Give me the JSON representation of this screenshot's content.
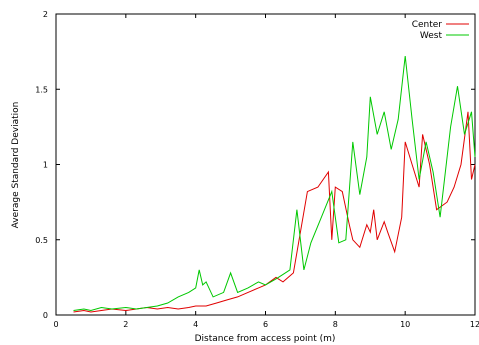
{
  "chart_data": {
    "type": "line",
    "xlabel": "Distance from access point (m)",
    "ylabel": "Average Standard Deviation",
    "xlim": [
      0,
      12
    ],
    "ylim": [
      0,
      2
    ],
    "xticks": [
      0,
      2,
      4,
      6,
      8,
      10,
      12
    ],
    "yticks": [
      0,
      0.5,
      1,
      1.5,
      2
    ],
    "legend_position": "top-right",
    "grid": false,
    "series": [
      {
        "name": "Center",
        "color": "#e00000",
        "x": [
          0.5,
          0.8,
          1.0,
          1.3,
          1.6,
          2.0,
          2.3,
          2.6,
          2.9,
          3.2,
          3.5,
          3.8,
          4.0,
          4.3,
          4.6,
          4.9,
          5.2,
          5.5,
          5.8,
          6.0,
          6.3,
          6.5,
          6.8,
          7.0,
          7.2,
          7.5,
          7.8,
          7.9,
          8.0,
          8.2,
          8.4,
          8.5,
          8.7,
          8.9,
          9.0,
          9.1,
          9.2,
          9.4,
          9.5,
          9.7,
          9.9,
          10.0,
          10.2,
          10.4,
          10.5,
          10.7,
          10.9,
          11.2,
          11.4,
          11.6,
          11.8,
          11.9,
          12.0
        ],
        "y": [
          0.02,
          0.03,
          0.02,
          0.03,
          0.04,
          0.03,
          0.04,
          0.05,
          0.04,
          0.05,
          0.04,
          0.05,
          0.06,
          0.06,
          0.08,
          0.1,
          0.12,
          0.15,
          0.18,
          0.2,
          0.25,
          0.22,
          0.28,
          0.55,
          0.82,
          0.85,
          0.95,
          0.5,
          0.85,
          0.82,
          0.6,
          0.5,
          0.45,
          0.6,
          0.55,
          0.7,
          0.5,
          0.62,
          0.55,
          0.42,
          0.65,
          1.15,
          1.0,
          0.85,
          1.2,
          1.0,
          0.7,
          0.75,
          0.85,
          1.0,
          1.35,
          0.9,
          1.0
        ]
      },
      {
        "name": "West",
        "color": "#00c800",
        "x": [
          0.5,
          0.8,
          1.0,
          1.3,
          1.6,
          2.0,
          2.3,
          2.6,
          2.9,
          3.2,
          3.5,
          3.8,
          4.0,
          4.1,
          4.2,
          4.3,
          4.5,
          4.8,
          5.0,
          5.2,
          5.5,
          5.8,
          6.0,
          6.3,
          6.5,
          6.7,
          6.9,
          7.1,
          7.3,
          7.6,
          7.9,
          8.1,
          8.3,
          8.5,
          8.7,
          8.9,
          9.0,
          9.2,
          9.4,
          9.6,
          9.8,
          10.0,
          10.2,
          10.4,
          10.6,
          10.8,
          11.0,
          11.3,
          11.5,
          11.7,
          11.9,
          12.0
        ],
        "y": [
          0.03,
          0.04,
          0.03,
          0.05,
          0.04,
          0.05,
          0.04,
          0.05,
          0.06,
          0.08,
          0.12,
          0.15,
          0.18,
          0.3,
          0.2,
          0.22,
          0.12,
          0.15,
          0.28,
          0.15,
          0.18,
          0.22,
          0.2,
          0.24,
          0.27,
          0.3,
          0.7,
          0.3,
          0.48,
          0.65,
          0.82,
          0.48,
          0.5,
          1.15,
          0.8,
          1.05,
          1.45,
          1.2,
          1.35,
          1.1,
          1.3,
          1.72,
          1.3,
          0.9,
          1.15,
          0.95,
          0.65,
          1.25,
          1.52,
          1.2,
          1.35,
          1.05
        ]
      }
    ]
  }
}
